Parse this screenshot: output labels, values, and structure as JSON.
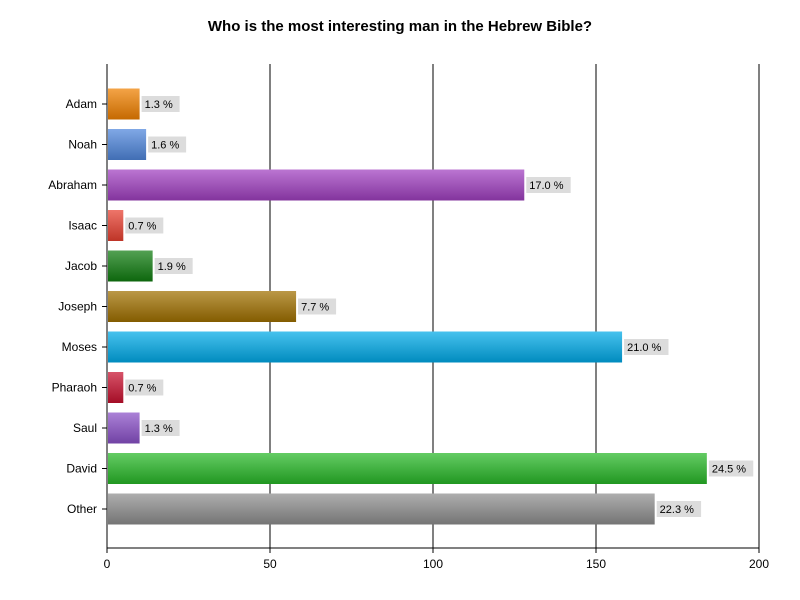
{
  "chart_data": {
    "type": "bar",
    "orientation": "horizontal",
    "title": "Who is the most interesting man in the Hebrew Bible?",
    "xlabel": "",
    "ylabel": "",
    "xlim": [
      0,
      200
    ],
    "x_ticks": [
      0,
      50,
      100,
      150,
      200
    ],
    "vertical_gridlines": true,
    "legend": false,
    "categories": [
      "Adam",
      "Noah",
      "Abraham",
      "Isaac",
      "Jacob",
      "Joseph",
      "Moses",
      "Pharaoh",
      "Saul",
      "David",
      "Other"
    ],
    "values": [
      10,
      12,
      128,
      5,
      14,
      58,
      158,
      5,
      10,
      184,
      168
    ],
    "data_labels": [
      "1.3 %",
      "1.6 %",
      "17.0 %",
      "0.7 %",
      "1.9 %",
      "7.7 %",
      "21.0 %",
      "0.7 %",
      "1.3 %",
      "24.5 %",
      "22.3 %"
    ],
    "colors": [
      "#F08000",
      "#4F86DC",
      "#A040C0",
      "#E84030",
      "#107C10",
      "#A07000",
      "#00AAE8",
      "#C8102E",
      "#8A50C8",
      "#28B828",
      "#8E8E8E"
    ]
  }
}
